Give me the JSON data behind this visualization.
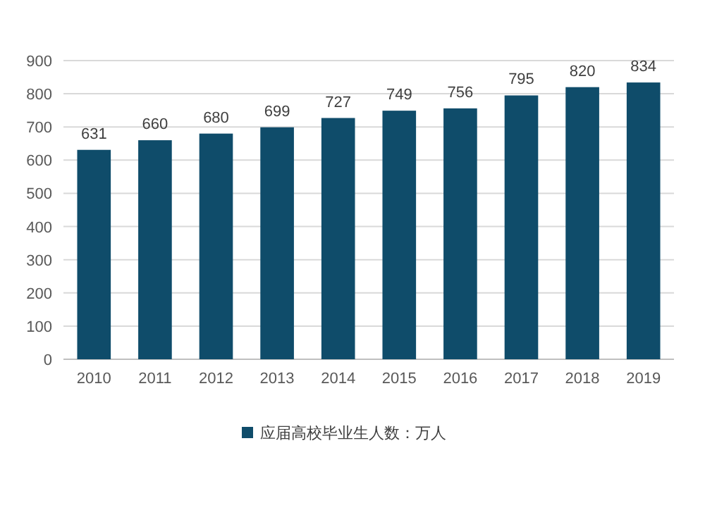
{
  "chart_data": {
    "type": "bar",
    "categories": [
      "2010",
      "2011",
      "2012",
      "2013",
      "2014",
      "2015",
      "2016",
      "2017",
      "2018",
      "2019"
    ],
    "series": [
      {
        "name": "应届高校毕业生人数：万人",
        "color": "#0f4c6a",
        "values": [
          631,
          660,
          680,
          699,
          727,
          749,
          756,
          795,
          820,
          834
        ]
      }
    ],
    "ylim": [
      0,
      900
    ],
    "yticks": [
      0,
      100,
      200,
      300,
      400,
      500,
      600,
      700,
      800,
      900
    ],
    "grid": "y",
    "data_labels": true,
    "legend": "bottom"
  }
}
